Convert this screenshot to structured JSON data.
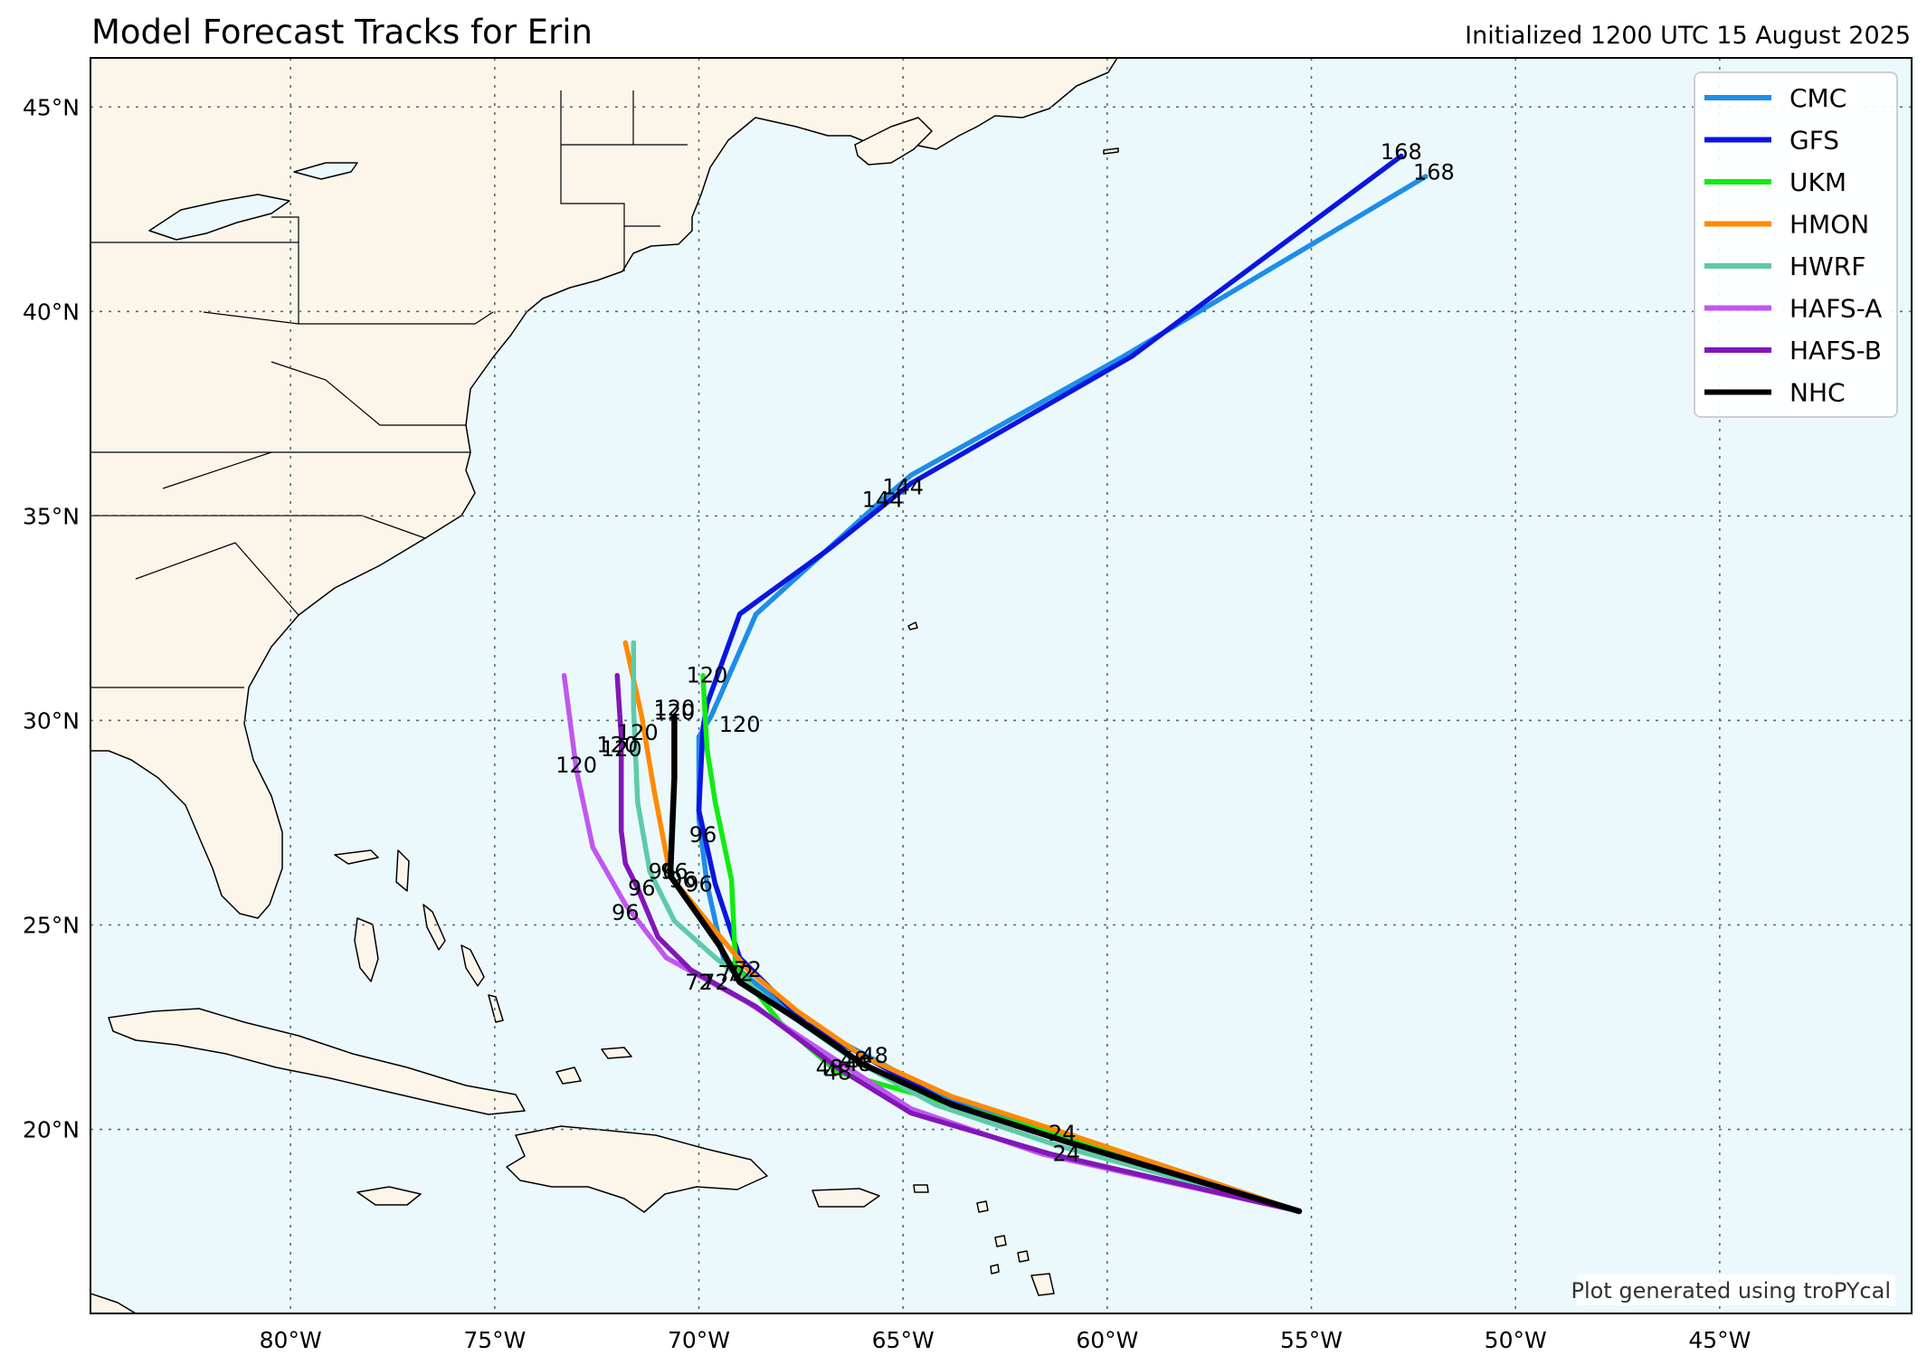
{
  "title": "Model Forecast Tracks for Erin",
  "subtitle": "Initialized 1200 UTC 15 August 2025",
  "credit": "Plot generated using troPYcal",
  "colors": {
    "ocean": "#ebf9fd",
    "land": "#fcf6ea",
    "border": "#000000",
    "grid": "#5a6b6b"
  },
  "axes": {
    "lon_ticks": [
      {
        "value": -80,
        "label": "80°W"
      },
      {
        "value": -75,
        "label": "75°W"
      },
      {
        "value": -70,
        "label": "70°W"
      },
      {
        "value": -65,
        "label": "65°W"
      },
      {
        "value": -60,
        "label": "60°W"
      },
      {
        "value": -55,
        "label": "55°W"
      },
      {
        "value": -50,
        "label": "50°W"
      },
      {
        "value": -45,
        "label": "45°W"
      }
    ],
    "lat_ticks": [
      {
        "value": 20,
        "label": "20°N"
      },
      {
        "value": 25,
        "label": "25°N"
      },
      {
        "value": 30,
        "label": "30°N"
      },
      {
        "value": 35,
        "label": "35°N"
      },
      {
        "value": 40,
        "label": "40°N"
      },
      {
        "value": 45,
        "label": "45°N"
      }
    ],
    "lon_range": [
      -84.9,
      -40.3
    ],
    "lat_range": [
      15.5,
      46.2
    ]
  },
  "chart_data": {
    "type": "line",
    "series": [
      {
        "name": "CMC",
        "color": "#1e8de8",
        "points": [
          [
            -55.3,
            18.0
          ],
          [
            -61.0,
            19.9
          ],
          [
            -64.0,
            20.8
          ],
          [
            -67.4,
            22.6
          ],
          [
            -69.4,
            24.2
          ],
          [
            -69.8,
            26.0
          ],
          [
            -70.0,
            27.6
          ],
          [
            -70.0,
            29.6
          ],
          [
            -69.7,
            30.1
          ],
          [
            -68.6,
            32.6
          ],
          [
            -65.5,
            35.4
          ],
          [
            -64.8,
            36.0
          ],
          [
            -59.6,
            38.9
          ],
          [
            -52.2,
            43.3
          ]
        ],
        "labels": [
          {
            "text": "24",
            "at": [
              -61.1,
              19.9
            ]
          },
          {
            "text": "96",
            "at": [
              -70.0,
              26.0
            ]
          },
          {
            "text": "120",
            "at": [
              -69.0,
              29.9
            ]
          },
          {
            "text": "144",
            "at": [
              -65.5,
              35.4
            ]
          },
          {
            "text": "168",
            "at": [
              -52.0,
              43.4
            ]
          }
        ]
      },
      {
        "name": "GFS",
        "color": "#0a16e0",
        "points": [
          [
            -55.3,
            18.0
          ],
          [
            -61.0,
            19.7
          ],
          [
            -64.0,
            20.7
          ],
          [
            -67.4,
            22.6
          ],
          [
            -69.0,
            24.2
          ],
          [
            -69.6,
            26.0
          ],
          [
            -70.0,
            27.8
          ],
          [
            -69.9,
            29.8
          ],
          [
            -69.8,
            30.4
          ],
          [
            -69.0,
            32.6
          ],
          [
            -66.8,
            34.2
          ],
          [
            -64.8,
            35.8
          ],
          [
            -59.4,
            38.9
          ],
          [
            -52.8,
            43.8
          ]
        ],
        "labels": [
          {
            "text": "120",
            "at": [
              -70.6,
              30.2
            ]
          },
          {
            "text": "144",
            "at": [
              -65.0,
              35.7
            ]
          },
          {
            "text": "168",
            "at": [
              -52.8,
              43.9
            ]
          }
        ]
      },
      {
        "name": "UKM",
        "color": "#10ec10",
        "points": [
          [
            -55.3,
            18.0
          ],
          [
            -61.0,
            19.8
          ],
          [
            -64.8,
            20.9
          ],
          [
            -66.6,
            21.4
          ],
          [
            -68.0,
            22.6
          ],
          [
            -69.1,
            24.0
          ],
          [
            -69.2,
            26.1
          ],
          [
            -69.6,
            28.0
          ],
          [
            -69.8,
            29.3
          ],
          [
            -69.9,
            31.1
          ]
        ],
        "labels": [
          {
            "text": "48",
            "at": [
              -66.6,
              21.4
            ]
          },
          {
            "text": "96",
            "at": [
              -69.9,
              27.2
            ]
          },
          {
            "text": "120",
            "at": [
              -69.8,
              31.1
            ]
          }
        ]
      },
      {
        "name": "HMON",
        "color": "#ff8a00",
        "points": [
          [
            -55.3,
            18.0
          ],
          [
            -61.0,
            19.9
          ],
          [
            -63.8,
            20.8
          ],
          [
            -66.0,
            21.8
          ],
          [
            -67.6,
            22.9
          ],
          [
            -68.8,
            23.9
          ],
          [
            -69.8,
            25.1
          ],
          [
            -70.7,
            26.2
          ],
          [
            -71.1,
            28.3
          ],
          [
            -71.4,
            30.1
          ],
          [
            -71.8,
            31.9
          ]
        ],
        "labels": [
          {
            "text": "48",
            "at": [
              -65.7,
              21.8
            ]
          },
          {
            "text": "72",
            "at": [
              -68.8,
              23.9
            ]
          },
          {
            "text": "96",
            "at": [
              -70.6,
              26.3
            ]
          },
          {
            "text": "120",
            "at": [
              -71.5,
              29.7
            ]
          }
        ]
      },
      {
        "name": "HWRF",
        "color": "#5ecaa8",
        "points": [
          [
            -55.3,
            18.0
          ],
          [
            -61.2,
            19.6
          ],
          [
            -64.2,
            20.6
          ],
          [
            -66.2,
            21.7
          ],
          [
            -68.2,
            23.1
          ],
          [
            -69.6,
            24.2
          ],
          [
            -70.6,
            25.1
          ],
          [
            -71.2,
            26.3
          ],
          [
            -71.5,
            28.0
          ],
          [
            -71.6,
            30.3
          ],
          [
            -71.6,
            31.9
          ]
        ],
        "labels": [
          {
            "text": "48",
            "at": [
              -66.2,
              21.7
            ]
          },
          {
            "text": "72",
            "at": [
              -69.2,
              23.8
            ]
          },
          {
            "text": "96",
            "at": [
              -70.9,
              26.3
            ]
          },
          {
            "text": "120",
            "at": [
              -71.9,
              29.3
            ]
          }
        ]
      },
      {
        "name": "HAFS-A",
        "color": "#c057f0",
        "points": [
          [
            -55.3,
            18.0
          ],
          [
            -61.6,
            19.4
          ],
          [
            -64.8,
            20.5
          ],
          [
            -66.8,
            21.8
          ],
          [
            -68.8,
            23.1
          ],
          [
            -70.8,
            24.2
          ],
          [
            -71.8,
            25.5
          ],
          [
            -72.6,
            26.9
          ],
          [
            -73.0,
            28.8
          ],
          [
            -73.3,
            31.1
          ]
        ],
        "labels": [
          {
            "text": "72",
            "at": [
              -70.0,
              23.6
            ]
          },
          {
            "text": "96",
            "at": [
              -71.8,
              25.3
            ]
          },
          {
            "text": "120",
            "at": [
              -73.0,
              28.9
            ]
          }
        ]
      },
      {
        "name": "HAFS-B",
        "color": "#8216b8",
        "points": [
          [
            -55.3,
            18.0
          ],
          [
            -61.4,
            19.4
          ],
          [
            -64.8,
            20.4
          ],
          [
            -66.6,
            21.5
          ],
          [
            -68.6,
            23.0
          ],
          [
            -70.2,
            23.9
          ],
          [
            -71.0,
            24.7
          ],
          [
            -71.5,
            25.9
          ],
          [
            -71.8,
            26.5
          ],
          [
            -71.9,
            27.3
          ],
          [
            -71.9,
            29.6
          ],
          [
            -72.0,
            31.1
          ]
        ],
        "labels": [
          {
            "text": "48",
            "at": [
              -66.8,
              21.5
            ]
          },
          {
            "text": "72",
            "at": [
              -69.6,
              23.6
            ]
          },
          {
            "text": "96",
            "at": [
              -71.4,
              25.9
            ]
          },
          {
            "text": "120",
            "at": [
              -72.0,
              29.4
            ]
          }
        ]
      },
      {
        "name": "NHC",
        "color": "#000000",
        "points": [
          [
            -55.3,
            18.0
          ],
          [
            -61.0,
            19.7
          ],
          [
            -63.8,
            20.6
          ],
          [
            -66.0,
            21.6
          ],
          [
            -67.6,
            22.7
          ],
          [
            -69.0,
            23.6
          ],
          [
            -69.5,
            24.5
          ],
          [
            -70.7,
            26.2
          ],
          [
            -70.6,
            28.6
          ],
          [
            -70.6,
            30.1
          ]
        ],
        "labels": [
          {
            "text": "24",
            "at": [
              -61.0,
              19.4
            ]
          },
          {
            "text": "48",
            "at": [
              -66.1,
              21.6
            ]
          },
          {
            "text": "72",
            "at": [
              -69.0,
              23.8
            ]
          },
          {
            "text": "96",
            "at": [
              -70.4,
              26.1
            ]
          },
          {
            "text": "120",
            "at": [
              -70.6,
              30.3
            ]
          }
        ]
      }
    ]
  },
  "legend": {
    "placement": "top-right",
    "items": [
      "CMC",
      "GFS",
      "UKM",
      "HMON",
      "HWRF",
      "HAFS-A",
      "HAFS-B",
      "NHC"
    ]
  }
}
